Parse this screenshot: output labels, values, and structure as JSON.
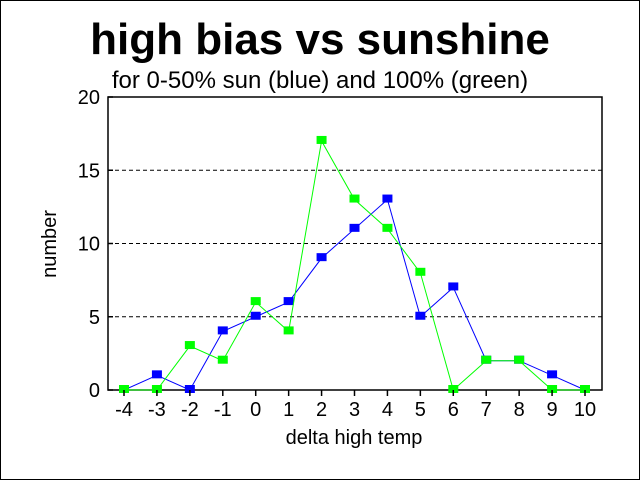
{
  "chart_data": {
    "type": "line",
    "title": "high bias vs sunshine",
    "subtitle": "for 0-50% sun (blue) and 100% (green)",
    "xlabel": "delta high temp",
    "ylabel": "number",
    "x": [
      -4,
      -3,
      -2,
      -1,
      0,
      1,
      2,
      3,
      4,
      5,
      6,
      7,
      8,
      9,
      10
    ],
    "xticks": [
      "-4",
      "-3",
      "-2",
      "-1",
      "0",
      "1",
      "2",
      "3",
      "4",
      "5",
      "6",
      "7",
      "8",
      "9",
      "10"
    ],
    "yticks": [
      "0",
      "5",
      "10",
      "15",
      "20"
    ],
    "ylim": [
      0,
      20
    ],
    "grid": "horizontal dashed",
    "series": [
      {
        "name": "0-50% sun",
        "color": "#0000ff",
        "values": [
          0,
          1,
          0,
          4,
          5,
          6,
          9,
          11,
          13,
          5,
          7,
          2,
          2,
          1,
          0
        ]
      },
      {
        "name": "100% sun",
        "color": "#00ff00",
        "values": [
          0,
          0,
          3,
          2,
          6,
          4,
          17,
          13,
          11,
          8,
          0,
          2,
          2,
          0,
          0
        ]
      }
    ]
  }
}
